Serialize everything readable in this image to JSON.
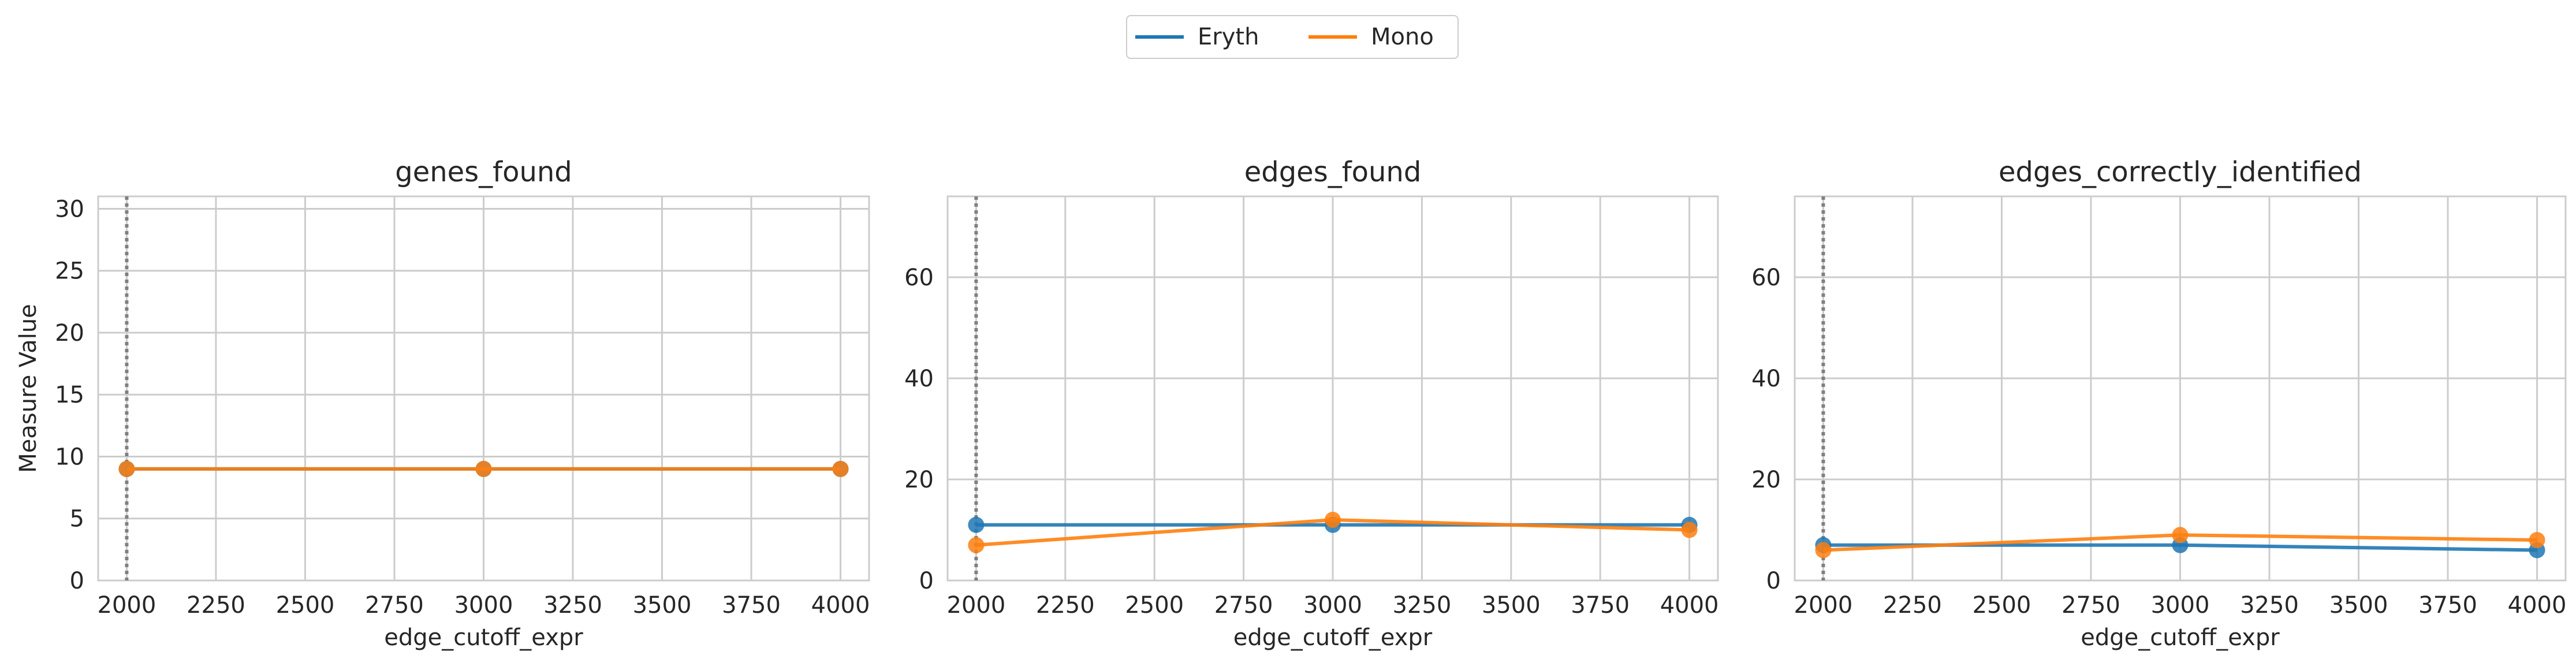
{
  "legend": {
    "entries": [
      {
        "label": "Eryth",
        "color": "#1f77b4"
      },
      {
        "label": "Mono",
        "color": "#ff7f0e"
      }
    ]
  },
  "chart_data": [
    {
      "type": "line",
      "title": "genes_found",
      "xlabel": "edge_cutoff_expr",
      "ylabel": "Measure Value",
      "xlim": [
        1920,
        4080
      ],
      "ylim": [
        0,
        31
      ],
      "xticks": [
        2000,
        2250,
        2500,
        2750,
        3000,
        3250,
        3500,
        3750,
        4000
      ],
      "yticks": [
        0,
        5,
        10,
        15,
        20,
        25,
        30
      ],
      "grid": true,
      "reference_line_x": 2000,
      "x": [
        2000,
        3000,
        4000
      ],
      "series": [
        {
          "name": "Eryth",
          "values": [
            9,
            9,
            9
          ]
        },
        {
          "name": "Mono",
          "values": [
            9,
            9,
            9
          ]
        }
      ]
    },
    {
      "type": "line",
      "title": "edges_found",
      "xlabel": "edge_cutoff_expr",
      "ylabel": "",
      "xlim": [
        1920,
        4080
      ],
      "ylim": [
        0,
        76
      ],
      "xticks": [
        2000,
        2250,
        2500,
        2750,
        3000,
        3250,
        3500,
        3750,
        4000
      ],
      "yticks": [
        0,
        20,
        40,
        60
      ],
      "grid": true,
      "reference_line_x": 2000,
      "x": [
        2000,
        3000,
        4000
      ],
      "series": [
        {
          "name": "Eryth",
          "values": [
            11,
            11,
            11
          ]
        },
        {
          "name": "Mono",
          "values": [
            7,
            12,
            10
          ]
        }
      ]
    },
    {
      "type": "line",
      "title": "edges_correctly_identified",
      "xlabel": "edge_cutoff_expr",
      "ylabel": "",
      "xlim": [
        1920,
        4080
      ],
      "ylim": [
        0,
        76
      ],
      "xticks": [
        2000,
        2250,
        2500,
        2750,
        3000,
        3250,
        3500,
        3750,
        4000
      ],
      "yticks": [
        0,
        20,
        40,
        60
      ],
      "grid": true,
      "reference_line_x": 2000,
      "x": [
        2000,
        3000,
        4000
      ],
      "series": [
        {
          "name": "Eryth",
          "values": [
            7,
            7,
            6
          ]
        },
        {
          "name": "Mono",
          "values": [
            6,
            9,
            8
          ]
        }
      ]
    }
  ]
}
